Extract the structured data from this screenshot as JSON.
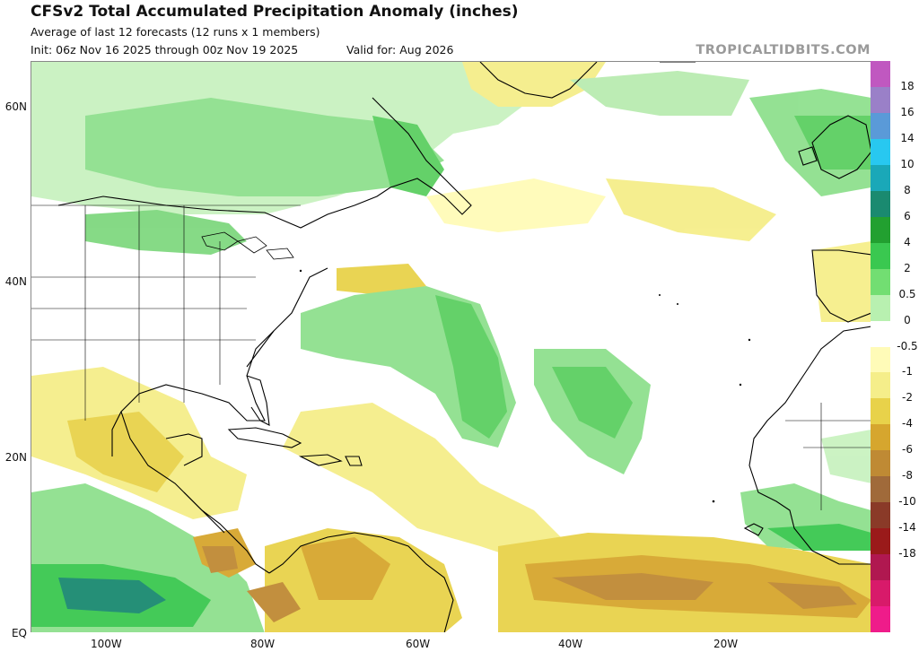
{
  "header": {
    "title": "CFSv2 Total Accumulated Precipitation Anomaly (inches)",
    "subtitle": "Average of last 12 forecasts (12 runs x 1 members)",
    "init": "Init: 06z Nov 16 2025 through 00z Nov 19 2025",
    "valid": "Valid for: Aug 2026",
    "brand": "TROPICALTIDBITS.COM"
  },
  "map": {
    "lat_labels": [
      "60N",
      "40N",
      "20N",
      "EQ"
    ],
    "lon_labels": [
      "100W",
      "80W",
      "60W",
      "40W",
      "20W"
    ]
  },
  "colorbar": {
    "labels": [
      "18",
      "16",
      "14",
      "10",
      "8",
      "6",
      "4",
      "2",
      "0.5",
      "0",
      "-0.5",
      "-1",
      "-2",
      "-4",
      "-6",
      "-8",
      "-10",
      "-14",
      "-18"
    ],
    "colors": [
      "#c058c0",
      "#9a80c8",
      "#5a9ad8",
      "#28c8f0",
      "#1aa8b8",
      "#1a8a70",
      "#22a030",
      "#3ac850",
      "#72de72",
      "#b8f0b0",
      "#ffffff",
      "#fffbb8",
      "#f5ee8a",
      "#e8d24a",
      "#d6a62e",
      "#bf8a34",
      "#a06a3a",
      "#8a3a28",
      "#9a1a1a",
      "#b01850",
      "#d81a6a",
      "#ef1c8a"
    ]
  }
}
